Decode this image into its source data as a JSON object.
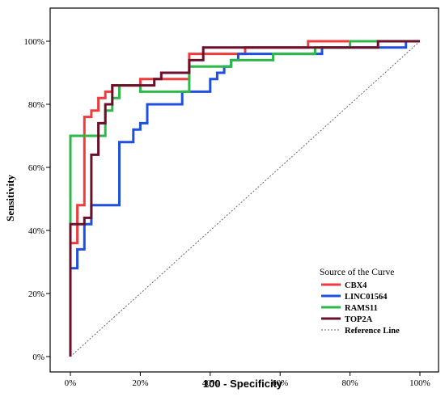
{
  "chart_data": {
    "type": "line",
    "title": "",
    "xlabel": "100 - Specificity",
    "ylabel": "Sensitivity",
    "xlim": [
      0,
      100
    ],
    "ylim": [
      0,
      100
    ],
    "x_ticks": [
      "0%",
      "20%",
      "40%",
      "60%",
      "80%",
      "100%"
    ],
    "y_ticks": [
      "0%",
      "20%",
      "40%",
      "60%",
      "80%",
      "100%"
    ],
    "grid": false,
    "legend": {
      "title": "Source of the Curve",
      "placement": "bottom-right",
      "entries": [
        "CBX4",
        "LINC01564",
        "RAMS11",
        "TOP2A",
        "Reference Line"
      ]
    },
    "series": [
      {
        "name": "CBX4",
        "color": "#ef3b3b",
        "points": [
          [
            0,
            0
          ],
          [
            0,
            36
          ],
          [
            2,
            36
          ],
          [
            2,
            48
          ],
          [
            4,
            48
          ],
          [
            4,
            76
          ],
          [
            6,
            76
          ],
          [
            6,
            78
          ],
          [
            8,
            78
          ],
          [
            8,
            82
          ],
          [
            10,
            82
          ],
          [
            10,
            84
          ],
          [
            12,
            84
          ],
          [
            12,
            86
          ],
          [
            20,
            86
          ],
          [
            20,
            88
          ],
          [
            34,
            88
          ],
          [
            34,
            96
          ],
          [
            50,
            96
          ],
          [
            50,
            98
          ],
          [
            68,
            98
          ],
          [
            68,
            100
          ],
          [
            100,
            100
          ]
        ]
      },
      {
        "name": "LINC01564",
        "color": "#1f4fe0",
        "points": [
          [
            0,
            0
          ],
          [
            0,
            28
          ],
          [
            2,
            28
          ],
          [
            2,
            34
          ],
          [
            4,
            34
          ],
          [
            4,
            42
          ],
          [
            6,
            42
          ],
          [
            6,
            48
          ],
          [
            14,
            48
          ],
          [
            14,
            68
          ],
          [
            18,
            68
          ],
          [
            18,
            72
          ],
          [
            20,
            72
          ],
          [
            20,
            74
          ],
          [
            22,
            74
          ],
          [
            22,
            80
          ],
          [
            32,
            80
          ],
          [
            32,
            84
          ],
          [
            40,
            84
          ],
          [
            40,
            88
          ],
          [
            42,
            88
          ],
          [
            42,
            90
          ],
          [
            44,
            90
          ],
          [
            44,
            92
          ],
          [
            46,
            92
          ],
          [
            46,
            94
          ],
          [
            48,
            94
          ],
          [
            48,
            96
          ],
          [
            72,
            96
          ],
          [
            72,
            98
          ],
          [
            96,
            98
          ],
          [
            96,
            100
          ],
          [
            100,
            100
          ]
        ]
      },
      {
        "name": "RAMS11",
        "color": "#2db84a",
        "points": [
          [
            0,
            0
          ],
          [
            0,
            70
          ],
          [
            10,
            70
          ],
          [
            10,
            78
          ],
          [
            12,
            78
          ],
          [
            12,
            82
          ],
          [
            14,
            82
          ],
          [
            14,
            86
          ],
          [
            20,
            86
          ],
          [
            20,
            84
          ],
          [
            34,
            84
          ],
          [
            34,
            92
          ],
          [
            46,
            92
          ],
          [
            46,
            94
          ],
          [
            58,
            94
          ],
          [
            58,
            96
          ],
          [
            70,
            96
          ],
          [
            70,
            98
          ],
          [
            80,
            98
          ],
          [
            80,
            100
          ],
          [
            100,
            100
          ]
        ]
      },
      {
        "name": "TOP2A",
        "color": "#6b0f2a",
        "points": [
          [
            0,
            0
          ],
          [
            0,
            42
          ],
          [
            4,
            42
          ],
          [
            4,
            44
          ],
          [
            6,
            44
          ],
          [
            6,
            64
          ],
          [
            8,
            64
          ],
          [
            8,
            74
          ],
          [
            10,
            74
          ],
          [
            10,
            80
          ],
          [
            12,
            80
          ],
          [
            12,
            86
          ],
          [
            24,
            86
          ],
          [
            24,
            88
          ],
          [
            26,
            88
          ],
          [
            26,
            90
          ],
          [
            34,
            90
          ],
          [
            34,
            94
          ],
          [
            38,
            94
          ],
          [
            38,
            98
          ],
          [
            88,
            98
          ],
          [
            88,
            100
          ],
          [
            100,
            100
          ]
        ]
      }
    ],
    "reference_line": {
      "name": "Reference Line",
      "points": [
        [
          0,
          0
        ],
        [
          100,
          100
        ]
      ],
      "color": "#666666"
    }
  }
}
